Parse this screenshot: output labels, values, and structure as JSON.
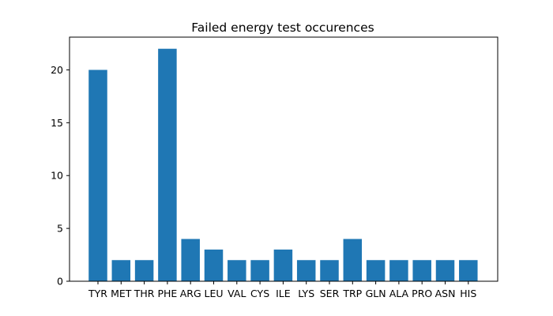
{
  "chart_data": {
    "type": "bar",
    "title": "Failed energy test occurences",
    "xlabel": "",
    "ylabel": "",
    "categories": [
      "TYR",
      "MET",
      "THR",
      "PHE",
      "ARG",
      "LEU",
      "VAL",
      "CYS",
      "ILE",
      "LYS",
      "SER",
      "TRP",
      "GLN",
      "ALA",
      "PRO",
      "ASN",
      "HIS"
    ],
    "values": [
      20,
      2,
      2,
      22,
      4,
      3,
      2,
      2,
      3,
      2,
      2,
      4,
      2,
      2,
      2,
      2,
      2
    ],
    "yticks": [
      "0",
      "5",
      "10",
      "15",
      "20"
    ],
    "ylim": [
      0,
      23.1
    ],
    "grid": false,
    "legend": "none",
    "colors": {
      "bar": "#1f77b4",
      "axis": "#000000",
      "background": "#ffffff"
    }
  }
}
